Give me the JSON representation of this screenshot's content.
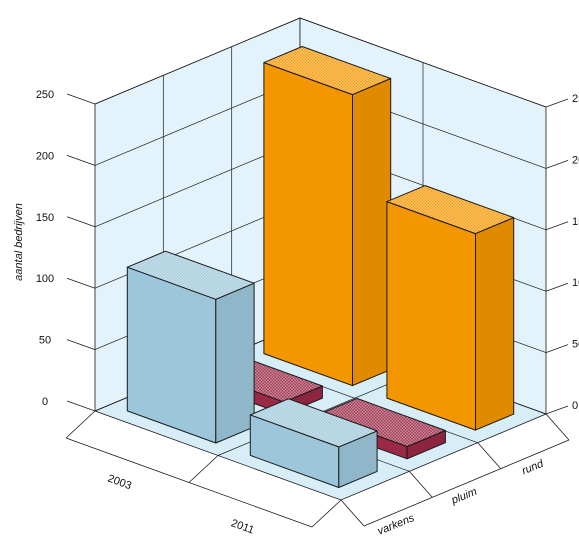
{
  "chart_data": {
    "type": "bar",
    "subtype": "3d-bar",
    "ylabel": "aantal bedrijven",
    "ylim": [
      0,
      250
    ],
    "yticks": [
      "0",
      "50",
      "100",
      "150",
      "200",
      "250"
    ],
    "x_categories": [
      "2003",
      "2011"
    ],
    "depth_categories": [
      "varkens",
      "pluim",
      "rund"
    ],
    "grid": true,
    "series": [
      {
        "name": "varkens",
        "values": [
          117,
          33
        ],
        "color": "#9cc7da"
      },
      {
        "name": "pluim",
        "values": [
          10,
          10
        ],
        "color": "#9a2846"
      },
      {
        "name": "rund",
        "values": [
          237,
          160
        ],
        "color": "#f49600"
      }
    ]
  }
}
